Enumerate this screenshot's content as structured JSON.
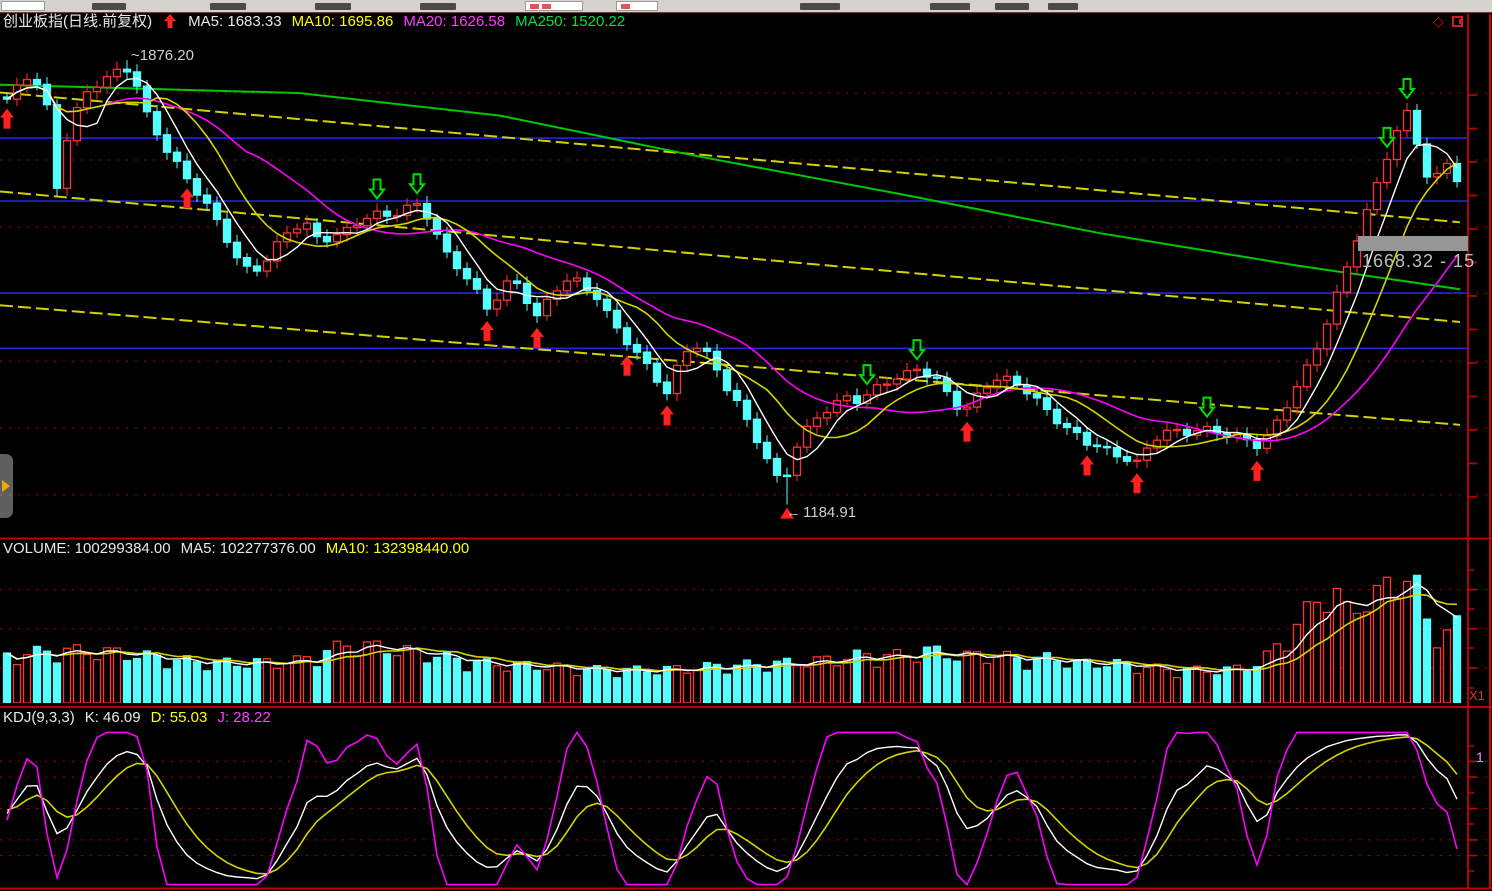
{
  "main_pane": {
    "title": "创业板指(日线.前复权)",
    "legend": [
      {
        "text": "MA5: 1683.33",
        "color": "#e8e8e8"
      },
      {
        "text": "MA10: 1695.86",
        "color": "#ffff00"
      },
      {
        "text": "MA20: 1626.58",
        "color": "#ff3cff"
      },
      {
        "text": "MA250: 1520.22",
        "color": "#00dd44"
      }
    ],
    "high_label": "~1876.20",
    "low_label": "1184.91",
    "price_tag": "1668.32 - 15"
  },
  "volume_pane": {
    "legend": [
      {
        "text": "VOLUME: 100299384.00",
        "color": "#e8e8e8"
      },
      {
        "text": "MA5: 102277376.00",
        "color": "#e8e8e8"
      },
      {
        "text": "MA10: 132398440.00",
        "color": "#ffff00"
      }
    ]
  },
  "kdj_pane": {
    "legend": [
      {
        "text": "KDJ(9,3,3)",
        "color": "#e8e8e8"
      },
      {
        "text": "K: 46.09",
        "color": "#e8e8e8"
      },
      {
        "text": "D: 55.03",
        "color": "#ffff00"
      },
      {
        "text": "J: 28.22",
        "color": "#ff3cff"
      }
    ]
  },
  "axis": {
    "x1_label": "X1",
    "kdj_label": "1"
  },
  "icons": {
    "diamond": "◇",
    "low_pointer": "←"
  },
  "chart_data": {
    "type": "candlestick",
    "instrument": "创业板指",
    "period": "日线",
    "adjustment": "前复权",
    "panes": [
      "price+MA",
      "VOLUME",
      "KDJ"
    ],
    "ma_values": {
      "MA5": 1683.33,
      "MA10": 1695.86,
      "MA20": 1626.58,
      "MA250": 1520.22
    },
    "volume_values": {
      "VOLUME": 100299384.0,
      "MA5": 102277376.0,
      "MA10": 132398440.0
    },
    "kdj_values": {
      "params": [
        9,
        3,
        3
      ],
      "K": 46.09,
      "D": 55.03,
      "J": 28.22
    },
    "high": 1876.2,
    "low": 1184.91,
    "last_price_tag": "1668.32 - 15",
    "candle_count": 146,
    "price_range": [
      1133,
      1948
    ],
    "grid_levels": [
      1825,
      1721,
      1617,
      1513,
      1408,
      1304,
      1200
    ],
    "blue_levels": [
      1755,
      1657,
      1514,
      1428
    ],
    "trendlines": [
      [
        [
          0,
          1826
        ],
        [
          1460,
          1624
        ]
      ],
      [
        [
          0,
          1672
        ],
        [
          1460,
          1469
        ]
      ],
      [
        [
          0,
          1495
        ],
        [
          1460,
          1309
        ]
      ]
    ],
    "ma250_anchors": [
      [
        0,
        1838
      ],
      [
        300,
        1825
      ],
      [
        500,
        1790
      ],
      [
        700,
        1726
      ],
      [
        900,
        1668
      ],
      [
        1100,
        1607
      ],
      [
        1300,
        1556
      ],
      [
        1460,
        1520
      ]
    ],
    "price_anchors": [
      [
        0,
        1800
      ],
      [
        30,
        1855
      ],
      [
        45,
        1830
      ],
      [
        57,
        1680
      ],
      [
        70,
        1780
      ],
      [
        85,
        1820
      ],
      [
        100,
        1840
      ],
      [
        115,
        1855
      ],
      [
        127,
        1862
      ],
      [
        135,
        1850
      ],
      [
        145,
        1800
      ],
      [
        160,
        1755
      ],
      [
        175,
        1720
      ],
      [
        190,
        1680
      ],
      [
        205,
        1655
      ],
      [
        222,
        1610
      ],
      [
        238,
        1570
      ],
      [
        252,
        1545
      ],
      [
        265,
        1565
      ],
      [
        280,
        1595
      ],
      [
        295,
        1615
      ],
      [
        308,
        1618
      ],
      [
        320,
        1590
      ],
      [
        332,
        1605
      ],
      [
        345,
        1612
      ],
      [
        358,
        1625
      ],
      [
        372,
        1640
      ],
      [
        385,
        1630
      ],
      [
        400,
        1638
      ],
      [
        412,
        1650
      ],
      [
        420,
        1648
      ],
      [
        432,
        1625
      ],
      [
        445,
        1580
      ],
      [
        458,
        1556
      ],
      [
        470,
        1535
      ],
      [
        482,
        1500
      ],
      [
        490,
        1480
      ],
      [
        500,
        1515
      ],
      [
        512,
        1535
      ],
      [
        524,
        1512
      ],
      [
        536,
        1478
      ],
      [
        548,
        1505
      ],
      [
        560,
        1530
      ],
      [
        572,
        1540
      ],
      [
        584,
        1520
      ],
      [
        596,
        1508
      ],
      [
        608,
        1478
      ],
      [
        620,
        1450
      ],
      [
        632,
        1432
      ],
      [
        645,
        1408
      ],
      [
        658,
        1380
      ],
      [
        668,
        1358
      ],
      [
        678,
        1400
      ],
      [
        690,
        1430
      ],
      [
        702,
        1428
      ],
      [
        714,
        1400
      ],
      [
        726,
        1370
      ],
      [
        738,
        1345
      ],
      [
        750,
        1308
      ],
      [
        762,
        1275
      ],
      [
        774,
        1235
      ],
      [
        783,
        1205
      ],
      [
        790,
        1250
      ],
      [
        800,
        1285
      ],
      [
        812,
        1310
      ],
      [
        824,
        1330
      ],
      [
        836,
        1345
      ],
      [
        848,
        1355
      ],
      [
        860,
        1348
      ],
      [
        870,
        1360
      ],
      [
        882,
        1370
      ],
      [
        894,
        1378
      ],
      [
        906,
        1385
      ],
      [
        917,
        1395
      ],
      [
        928,
        1388
      ],
      [
        940,
        1378
      ],
      [
        952,
        1350
      ],
      [
        963,
        1330
      ],
      [
        975,
        1350
      ],
      [
        987,
        1368
      ],
      [
        1000,
        1380
      ],
      [
        1012,
        1375
      ],
      [
        1025,
        1365
      ],
      [
        1038,
        1348
      ],
      [
        1050,
        1330
      ],
      [
        1062,
        1310
      ],
      [
        1075,
        1295
      ],
      [
        1088,
        1278
      ],
      [
        1100,
        1272
      ],
      [
        1112,
        1262
      ],
      [
        1125,
        1258
      ],
      [
        1137,
        1252
      ],
      [
        1150,
        1282
      ],
      [
        1162,
        1300
      ],
      [
        1175,
        1298
      ],
      [
        1187,
        1295
      ],
      [
        1200,
        1298
      ],
      [
        1212,
        1300
      ],
      [
        1225,
        1294
      ],
      [
        1237,
        1292
      ],
      [
        1250,
        1288
      ],
      [
        1260,
        1276
      ],
      [
        1272,
        1300
      ],
      [
        1284,
        1330
      ],
      [
        1296,
        1362
      ],
      [
        1308,
        1398
      ],
      [
        1320,
        1440
      ],
      [
        1332,
        1490
      ],
      [
        1344,
        1545
      ],
      [
        1356,
        1598
      ],
      [
        1368,
        1645
      ],
      [
        1380,
        1695
      ],
      [
        1392,
        1745
      ],
      [
        1402,
        1780
      ],
      [
        1410,
        1798
      ],
      [
        1416,
        1755
      ],
      [
        1424,
        1705
      ],
      [
        1432,
        1685
      ],
      [
        1440,
        1705
      ],
      [
        1448,
        1722
      ],
      [
        1455,
        1700
      ],
      [
        1460,
        1685
      ]
    ],
    "volume_anchors": [
      [
        0,
        0.35
      ],
      [
        60,
        0.4
      ],
      [
        120,
        0.38
      ],
      [
        180,
        0.32
      ],
      [
        240,
        0.3
      ],
      [
        300,
        0.32
      ],
      [
        350,
        0.45
      ],
      [
        420,
        0.38
      ],
      [
        480,
        0.3
      ],
      [
        540,
        0.28
      ],
      [
        600,
        0.25
      ],
      [
        660,
        0.25
      ],
      [
        720,
        0.28
      ],
      [
        780,
        0.3
      ],
      [
        820,
        0.32
      ],
      [
        860,
        0.36
      ],
      [
        900,
        0.36
      ],
      [
        930,
        0.4
      ],
      [
        960,
        0.35
      ],
      [
        990,
        0.37
      ],
      [
        1020,
        0.33
      ],
      [
        1050,
        0.34
      ],
      [
        1080,
        0.3
      ],
      [
        1110,
        0.3
      ],
      [
        1140,
        0.28
      ],
      [
        1170,
        0.25
      ],
      [
        1200,
        0.25
      ],
      [
        1230,
        0.25
      ],
      [
        1260,
        0.3
      ],
      [
        1280,
        0.45
      ],
      [
        1300,
        0.62
      ],
      [
        1318,
        0.78
      ],
      [
        1332,
        0.92
      ],
      [
        1342,
        0.72
      ],
      [
        1352,
        0.66
      ],
      [
        1362,
        0.82
      ],
      [
        1372,
        0.76
      ],
      [
        1382,
        0.86
      ],
      [
        1392,
        0.9
      ],
      [
        1402,
        1.0
      ],
      [
        1410,
        0.95
      ],
      [
        1418,
        0.85
      ],
      [
        1426,
        0.62
      ],
      [
        1436,
        0.56
      ],
      [
        1446,
        0.54
      ],
      [
        1460,
        0.6
      ]
    ],
    "volume_grid": [
      0.84,
      0.55,
      0.26
    ],
    "kdj_grid": [
      80,
      70,
      50,
      30,
      20
    ],
    "buy_signals": [
      0,
      18,
      48,
      53,
      62,
      66,
      96,
      108,
      113,
      125
    ],
    "sell_signals": [
      37,
      41,
      86,
      91,
      120,
      138,
      140
    ],
    "high_marker_index": 12,
    "low_marker_index": 78,
    "colors": {
      "up": "#ff3232",
      "down": "#55ffff",
      "ma5": "#ffffff",
      "ma10": "#d4d400",
      "ma20": "#ff00ff",
      "ma250": "#00c800",
      "grid_dotted": "#b40000",
      "level_blue": "#2424dd",
      "trend_yellow": "#d2d200",
      "axis_red": "#c80000",
      "separator_red": "#be0000",
      "buy_arrow": "#ff2020",
      "sell_arrow": "#00dd00",
      "kdj_k": "#ffffff",
      "kdj_d": "#d4d400",
      "kdj_j": "#ff00ff"
    }
  }
}
